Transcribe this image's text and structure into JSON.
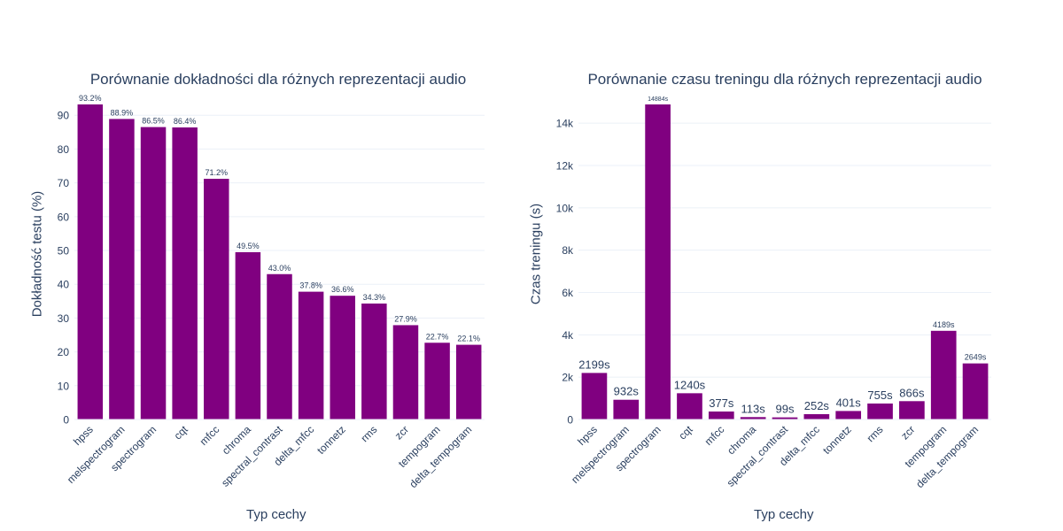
{
  "colors": {
    "bar": "#800080",
    "grid": "#ebf0f8",
    "text": "#2a3f5f"
  },
  "chart_data": [
    {
      "type": "bar",
      "title": "Porównanie dokładności dla różnych reprezentacji audio",
      "xlabel": "Typ cechy",
      "ylabel": "Dokładność testu (%)",
      "categories": [
        "hpss",
        "melspectrogram",
        "spectrogram",
        "cqt",
        "mfcc",
        "chroma",
        "spectral_contrast",
        "delta_mfcc",
        "tonnetz",
        "rms",
        "zcr",
        "tempogram",
        "delta_tempogram"
      ],
      "values": [
        93.2,
        88.9,
        86.5,
        86.4,
        71.2,
        49.5,
        43.0,
        37.8,
        36.6,
        34.3,
        27.9,
        22.7,
        22.1
      ],
      "data_labels": [
        "93.2%",
        "88.9%",
        "86.5%",
        "86.4%",
        "71.2%",
        "49.5%",
        "43.0%",
        "37.8%",
        "36.6%",
        "34.3%",
        "27.9%",
        "22.7%",
        "22.1%"
      ],
      "ylim": [
        0,
        93.2
      ],
      "yticks": [
        0,
        10,
        20,
        30,
        40,
        50,
        60,
        70,
        80,
        90
      ],
      "ytick_labels": [
        "0",
        "10",
        "20",
        "30",
        "40",
        "50",
        "60",
        "70",
        "80",
        "90"
      ],
      "grid": true
    },
    {
      "type": "bar",
      "title": "Porównanie czasu treningu dla różnych reprezentacji audio",
      "xlabel": "Typ cechy",
      "ylabel": "Czas treningu (s)",
      "categories": [
        "hpss",
        "melspectrogram",
        "spectrogram",
        "cqt",
        "mfcc",
        "chroma",
        "spectral_contrast",
        "delta_mfcc",
        "tonnetz",
        "rms",
        "zcr",
        "tempogram",
        "delta_tempogram"
      ],
      "values": [
        2199,
        932,
        14884,
        1240,
        377,
        113,
        99,
        252,
        401,
        755,
        866,
        4189,
        2649
      ],
      "data_labels": [
        "2199s",
        "932s",
        "14884s",
        "1240s",
        "377s",
        "113s",
        "99s",
        "252s",
        "401s",
        "755s",
        "866s",
        "4189s",
        "2649s"
      ],
      "ylim": [
        0,
        14884
      ],
      "yticks": [
        0,
        2000,
        4000,
        6000,
        8000,
        10000,
        12000,
        14000
      ],
      "ytick_labels": [
        "0",
        "2k",
        "4k",
        "6k",
        "8k",
        "10k",
        "12k",
        "14k"
      ],
      "grid": true
    }
  ]
}
